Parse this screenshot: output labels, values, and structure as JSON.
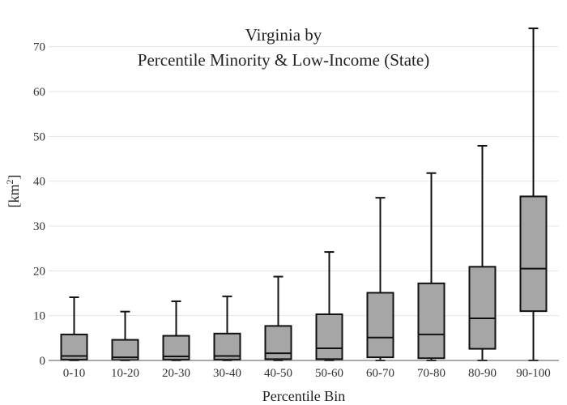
{
  "chart_data": {
    "type": "box",
    "title_lines": [
      "Virginia  by",
      "Percentile Minority & Low-Income (State)"
    ],
    "xlabel": "Percentile Bin",
    "ylabel_base": "[km",
    "ylabel_sup": "2",
    "ylabel_end": "]",
    "ylim": [
      0,
      75
    ],
    "yticks": [
      0,
      10,
      20,
      30,
      40,
      50,
      60,
      70
    ],
    "categories": [
      "0-10",
      "10-20",
      "20-30",
      "30-40",
      "40-50",
      "50-60",
      "60-70",
      "70-80",
      "80-90",
      "90-100"
    ],
    "boxes": [
      {
        "min": 0,
        "q1": 0.2,
        "median": 1.0,
        "q3": 5.8,
        "max": 14.1
      },
      {
        "min": 0,
        "q1": 0.1,
        "median": 0.7,
        "q3": 4.6,
        "max": 10.9
      },
      {
        "min": 0,
        "q1": 0.2,
        "median": 0.9,
        "q3": 5.5,
        "max": 13.2
      },
      {
        "min": 0,
        "q1": 0.2,
        "median": 1.0,
        "q3": 6.0,
        "max": 14.3
      },
      {
        "min": 0,
        "q1": 0.3,
        "median": 1.6,
        "q3": 7.7,
        "max": 18.7
      },
      {
        "min": 0,
        "q1": 0.3,
        "median": 2.7,
        "q3": 10.3,
        "max": 24.2
      },
      {
        "min": 0,
        "q1": 0.7,
        "median": 5.1,
        "q3": 15.1,
        "max": 36.3
      },
      {
        "min": 0,
        "q1": 0.5,
        "median": 5.8,
        "q3": 17.2,
        "max": 41.8
      },
      {
        "min": 0,
        "q1": 2.6,
        "median": 9.4,
        "q3": 20.9,
        "max": 47.9
      },
      {
        "min": 0,
        "q1": 11.0,
        "median": 20.5,
        "q3": 36.6,
        "max": 74.1
      }
    ],
    "grid": true,
    "legend": "none",
    "colors": {
      "box_fill": "#a6a6a6",
      "box_stroke": "#111111",
      "grid": "#e6e6e6"
    }
  }
}
